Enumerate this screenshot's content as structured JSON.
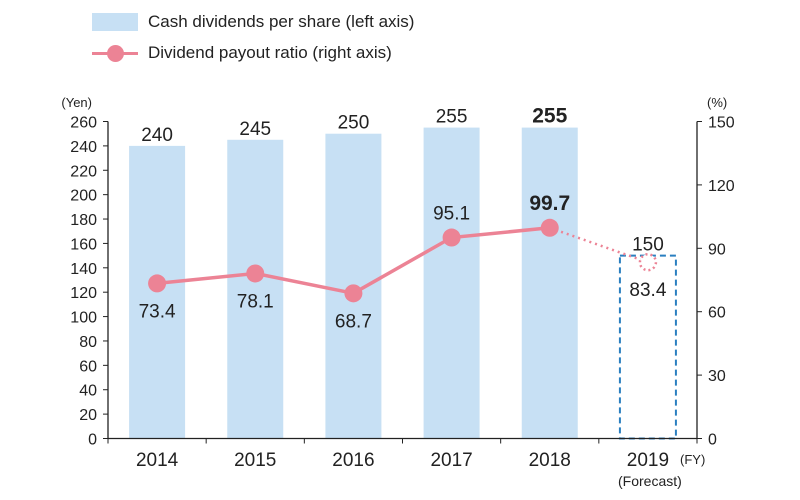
{
  "legend": {
    "bar_label": "Cash dividends per share (left axis)",
    "line_label": "Dividend payout ratio (right axis)"
  },
  "colors": {
    "bar": "#c7e0f4",
    "line": "#ec8395",
    "forecast_border": "#2a7fc0",
    "axis": "#222222"
  },
  "chart_data": {
    "type": "bar",
    "categories": [
      "2014",
      "2015",
      "2016",
      "2017",
      "2018",
      "2019"
    ],
    "forecast_category_note": "(Forecast)",
    "x_unit": "(FY)",
    "y_left_unit": "(Yen)",
    "y_right_unit": "(%)",
    "y_left_lim": [
      0,
      260
    ],
    "y_left_ticks": [
      0,
      20,
      40,
      60,
      80,
      100,
      120,
      140,
      160,
      180,
      200,
      220,
      240,
      260
    ],
    "y_right_lim": [
      0,
      150
    ],
    "y_right_ticks": [
      0,
      30,
      60,
      90,
      120,
      150
    ],
    "series": [
      {
        "name": "Cash dividends per share (left axis)",
        "type": "bar",
        "axis": "left",
        "values": [
          240,
          245,
          250,
          255,
          255,
          150
        ],
        "labels": [
          "240",
          "245",
          "250",
          "255",
          "255",
          "150"
        ],
        "bold_index": 4,
        "forecast_index": 5
      },
      {
        "name": "Dividend payout ratio (right axis)",
        "type": "line",
        "axis": "right",
        "values": [
          73.4,
          78.1,
          68.7,
          95.1,
          99.7,
          83.4
        ],
        "labels": [
          "73.4",
          "78.1",
          "68.7",
          "95.1",
          "99.7",
          "83.4"
        ],
        "bold_index": 4,
        "forecast_index": 5
      }
    ]
  }
}
